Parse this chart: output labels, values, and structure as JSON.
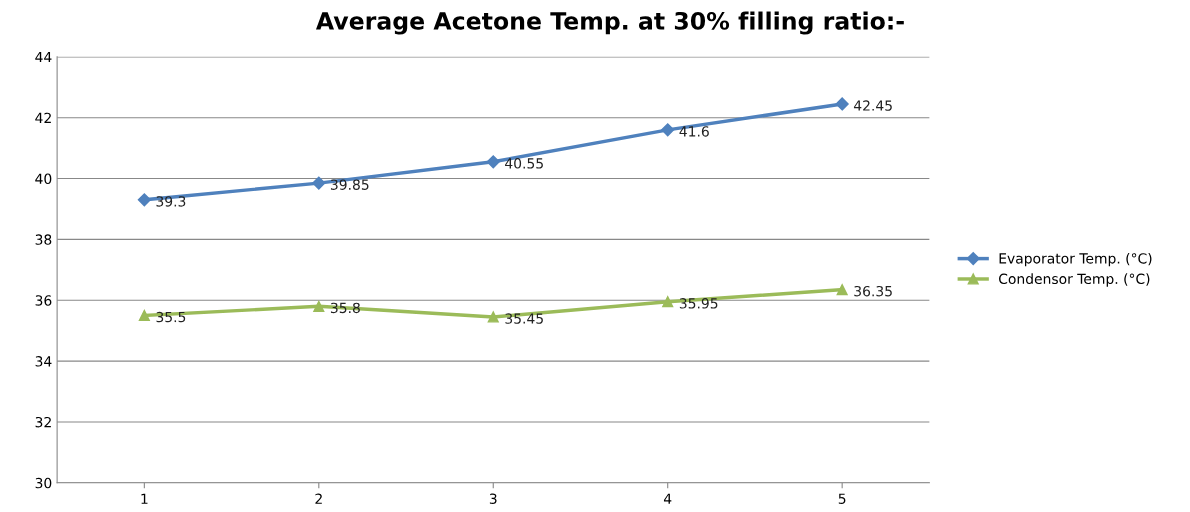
{
  "chart_data": {
    "type": "line",
    "title": "Average Acetone Temp. at 30% filling ratio:-",
    "categories": [
      "1",
      "2",
      "3",
      "4",
      "5"
    ],
    "series": [
      {
        "name": "Evaporator Temp. (°C)",
        "color": "#4f81bd",
        "marker": "diamond",
        "values": [
          39.3,
          39.85,
          40.55,
          41.6,
          42.45
        ]
      },
      {
        "name": "Condensor Temp. (°C)",
        "color": "#9bbb59",
        "marker": "triangle",
        "values": [
          35.5,
          35.8,
          35.45,
          35.95,
          36.35
        ]
      }
    ],
    "ylim": [
      30,
      44
    ],
    "yticks": [
      30,
      32,
      34,
      36,
      38,
      40,
      42,
      44
    ],
    "grid": "y",
    "legend": "right",
    "data_labels": true,
    "line_style": "solid"
  }
}
